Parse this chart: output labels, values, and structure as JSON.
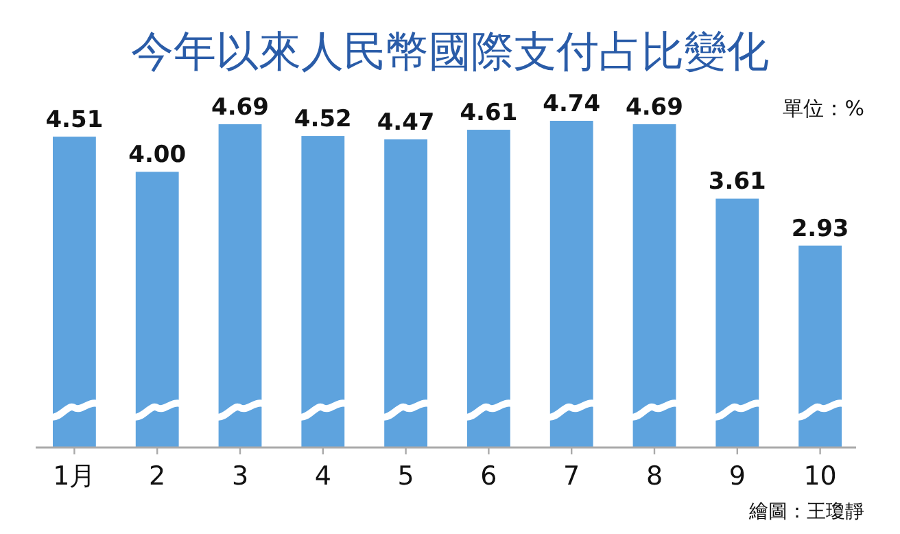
{
  "chart_data": {
    "type": "bar",
    "title": "今年以來人民幣國際支付占比變化",
    "categories": [
      "1月",
      "2",
      "3",
      "4",
      "5",
      "6",
      "7",
      "8",
      "9",
      "10"
    ],
    "values": [
      4.51,
      4.0,
      4.69,
      4.52,
      4.47,
      4.61,
      4.74,
      4.69,
      3.61,
      2.93
    ],
    "value_labels": [
      "4.51",
      "4.00",
      "4.69",
      "4.52",
      "4.47",
      "4.61",
      "4.74",
      "4.69",
      "3.61",
      "2.93"
    ],
    "color": "#5ea3de",
    "tick_labels": "x",
    "annotations": [
      "單位：%",
      "繪圖：王瓊靜"
    ]
  }
}
